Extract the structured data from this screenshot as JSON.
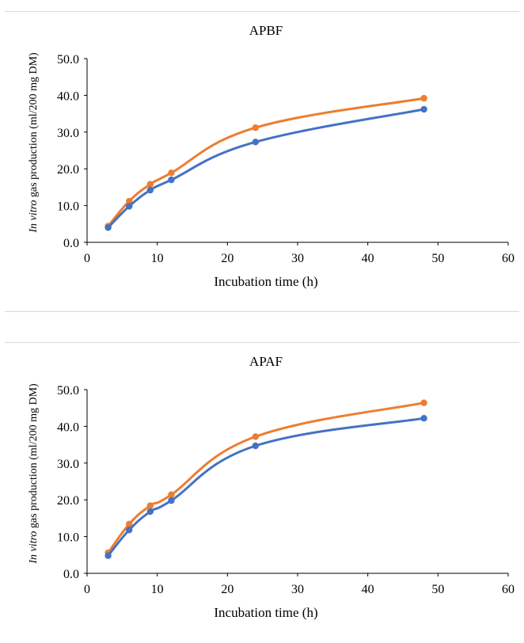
{
  "chart_data": [
    {
      "type": "line",
      "title": "APBF",
      "xlabel": "Incubation time (h)",
      "ylabel_italic": "In vitro",
      "ylabel_rest": " gas production (ml/200 mg DM)",
      "xlim": [
        0,
        60
      ],
      "ylim": [
        0,
        50
      ],
      "xticks": [
        "0",
        "10",
        "20",
        "30",
        "40",
        "50",
        "60"
      ],
      "yticks": [
        "0.0",
        "10.0",
        "20.0",
        "30.0",
        "40.0",
        "50.0"
      ],
      "x": [
        3,
        6,
        9,
        12,
        24,
        48
      ],
      "series": [
        {
          "color": "#ED7D31",
          "values": [
            4.4,
            11.2,
            15.8,
            18.9,
            31.2,
            39.2
          ]
        },
        {
          "color": "#4472C4",
          "values": [
            4.0,
            9.8,
            14.2,
            17.0,
            27.3,
            36.2
          ]
        }
      ],
      "grid": false,
      "legend": "none"
    },
    {
      "type": "line",
      "title": "APAF",
      "xlabel": "Incubation time (h)",
      "ylabel_italic": "In vitro",
      "ylabel_rest": " gas production (ml/200 mg DM)",
      "xlim": [
        0,
        60
      ],
      "ylim": [
        0,
        50
      ],
      "xticks": [
        "0",
        "10",
        "20",
        "30",
        "40",
        "50",
        "60"
      ],
      "yticks": [
        "0.0",
        "10.0",
        "20.0",
        "30.0",
        "40.0",
        "50.0"
      ],
      "x": [
        3,
        6,
        9,
        12,
        24,
        48
      ],
      "series": [
        {
          "color": "#ED7D31",
          "values": [
            5.6,
            13.4,
            18.4,
            21.4,
            37.2,
            46.4
          ]
        },
        {
          "color": "#4472C4",
          "values": [
            4.8,
            11.8,
            16.8,
            19.8,
            34.7,
            42.2
          ]
        }
      ],
      "grid": false,
      "legend": "none"
    }
  ]
}
